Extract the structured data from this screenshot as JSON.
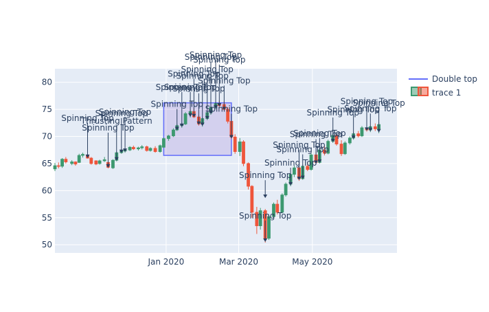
{
  "chart_data": {
    "type": "candlestick",
    "title": "",
    "xlabel": "",
    "ylabel": "",
    "x_range": [
      "2019-10-01",
      "2020-07-10"
    ],
    "ylim": [
      48.5,
      82.5
    ],
    "x_ticks": [
      {
        "date": "2020-01-01",
        "label": "Jan 2020"
      },
      {
        "date": "2020-03-01",
        "label": "Mar 2020"
      },
      {
        "date": "2020-05-01",
        "label": "May 2020"
      }
    ],
    "y_ticks": [
      50,
      55,
      60,
      65,
      70,
      75,
      80
    ],
    "colors": {
      "increasing": "#3d9970",
      "decreasing": "#ef553b",
      "grid": "#ffffff",
      "plot_bg": "#e5ecf6",
      "pattern_line": "#636efa",
      "pattern_fill": "rgba(150,110,210,0.22)",
      "annotation": "#2a3f5f"
    },
    "legend": {
      "position": "top-right",
      "entries": [
        {
          "name": "Double top",
          "symbol": "line"
        },
        {
          "name": "trace 1",
          "symbol": "candle"
        }
      ]
    },
    "patterns": [
      {
        "name": "Double top",
        "start": "2019-12-30",
        "end": "2020-02-24",
        "low": 66.5,
        "high": 76.2
      }
    ],
    "candles": [
      [
        "2019-10-01",
        64.0,
        65.1,
        63.6,
        64.6
      ],
      [
        "2019-10-04",
        64.6,
        65.2,
        64.1,
        64.5
      ],
      [
        "2019-10-07",
        64.5,
        66.0,
        64.2,
        65.8
      ],
      [
        "2019-10-10",
        65.8,
        66.2,
        65.0,
        65.3
      ],
      [
        "2019-10-15",
        65.0,
        65.6,
        64.7,
        65.3
      ],
      [
        "2019-10-18",
        65.3,
        65.4,
        64.6,
        64.9
      ],
      [
        "2019-10-21",
        65.2,
        66.8,
        65.1,
        66.5
      ],
      [
        "2019-10-24",
        66.5,
        67.0,
        66.1,
        66.7
      ],
      [
        "2019-10-28",
        66.5,
        66.9,
        65.9,
        66.0
      ],
      [
        "2019-10-31",
        66.0,
        66.2,
        64.8,
        65.0
      ],
      [
        "2019-11-04",
        65.5,
        65.6,
        64.7,
        64.9
      ],
      [
        "2019-11-07",
        65.0,
        65.7,
        64.8,
        65.5
      ],
      [
        "2019-11-11",
        65.5,
        66.2,
        65.3,
        65.7
      ],
      [
        "2019-11-14",
        65.2,
        65.5,
        64.1,
        64.3
      ],
      [
        "2019-11-18",
        64.2,
        65.8,
        64.0,
        65.6
      ],
      [
        "2019-11-21",
        65.6,
        67.2,
        65.4,
        67.0
      ],
      [
        "2019-11-25",
        67.0,
        67.6,
        66.8,
        67.3
      ],
      [
        "2019-11-28",
        67.3,
        67.8,
        67.0,
        67.5
      ],
      [
        "2019-12-02",
        67.5,
        68.2,
        67.3,
        68.0
      ],
      [
        "2019-12-05",
        68.0,
        68.3,
        67.5,
        67.7
      ],
      [
        "2019-12-09",
        67.7,
        68.1,
        67.4,
        67.9
      ],
      [
        "2019-12-12",
        67.9,
        68.4,
        67.6,
        68.1
      ],
      [
        "2019-12-16",
        68.1,
        68.3,
        67.2,
        67.4
      ],
      [
        "2019-12-19",
        67.4,
        68.0,
        67.2,
        67.8
      ],
      [
        "2019-12-23",
        67.8,
        68.2,
        67.0,
        67.2
      ],
      [
        "2019-12-27",
        67.2,
        68.5,
        67.0,
        68.3
      ],
      [
        "2019-12-30",
        68.0,
        69.8,
        67.9,
        69.6
      ],
      [
        "2020-01-03",
        69.6,
        70.3,
        69.2,
        70.1
      ],
      [
        "2020-01-07",
        70.1,
        71.5,
        69.9,
        71.2
      ],
      [
        "2020-01-10",
        71.2,
        72.3,
        71.0,
        72.0
      ],
      [
        "2020-01-14",
        72.0,
        72.6,
        71.6,
        72.3
      ],
      [
        "2020-01-17",
        72.3,
        74.5,
        72.1,
        74.2
      ],
      [
        "2020-01-21",
        74.2,
        75.0,
        73.5,
        74.6
      ],
      [
        "2020-01-24",
        74.6,
        75.2,
        73.4,
        73.6
      ],
      [
        "2020-01-28",
        73.6,
        74.0,
        72.0,
        72.3
      ],
      [
        "2020-01-31",
        72.3,
        73.5,
        71.8,
        73.3
      ],
      [
        "2020-02-04",
        73.3,
        74.6,
        73.0,
        74.4
      ],
      [
        "2020-02-07",
        74.4,
        75.7,
        74.0,
        75.4
      ],
      [
        "2020-02-11",
        75.4,
        76.4,
        75.0,
        76.1
      ],
      [
        "2020-02-14",
        76.1,
        76.6,
        75.4,
        75.7
      ],
      [
        "2020-02-18",
        75.9,
        76.5,
        74.7,
        75.0
      ],
      [
        "2020-02-21",
        75.0,
        75.4,
        72.4,
        72.8
      ],
      [
        "2020-02-24",
        72.8,
        73.0,
        69.5,
        69.9
      ],
      [
        "2020-02-27",
        69.9,
        70.4,
        66.8,
        67.2
      ],
      [
        "2020-03-02",
        67.2,
        69.7,
        66.4,
        69.0
      ],
      [
        "2020-03-05",
        69.0,
        69.3,
        64.5,
        65.0
      ],
      [
        "2020-03-09",
        65.0,
        65.2,
        60.2,
        60.8
      ],
      [
        "2020-03-12",
        60.8,
        61.0,
        55.0,
        56.0
      ],
      [
        "2020-03-16",
        56.0,
        57.0,
        52.0,
        53.5
      ],
      [
        "2020-03-19",
        53.5,
        56.8,
        52.8,
        56.3
      ],
      [
        "2020-03-23",
        56.3,
        56.6,
        50.4,
        51.2
      ],
      [
        "2020-03-26",
        51.2,
        55.6,
        50.9,
        55.2
      ],
      [
        "2020-03-30",
        55.2,
        57.8,
        54.8,
        57.5
      ],
      [
        "2020-04-02",
        57.5,
        58.3,
        55.6,
        56.0
      ],
      [
        "2020-04-06",
        56.0,
        59.5,
        55.8,
        59.2
      ],
      [
        "2020-04-09",
        59.2,
        61.5,
        58.9,
        61.2
      ],
      [
        "2020-04-13",
        61.2,
        63.2,
        60.8,
        63.0
      ],
      [
        "2020-04-16",
        63.0,
        64.6,
        62.5,
        64.2
      ],
      [
        "2020-04-20",
        64.2,
        64.6,
        61.8,
        62.2
      ],
      [
        "2020-04-23",
        62.2,
        64.8,
        62.0,
        64.5
      ],
      [
        "2020-04-27",
        64.5,
        65.3,
        63.6,
        63.9
      ],
      [
        "2020-04-30",
        63.9,
        66.9,
        63.7,
        66.6
      ],
      [
        "2020-05-04",
        66.6,
        67.2,
        64.8,
        65.2
      ],
      [
        "2020-05-07",
        65.2,
        67.8,
        65.0,
        67.5
      ],
      [
        "2020-05-11",
        67.5,
        68.2,
        66.5,
        66.9
      ],
      [
        "2020-05-14",
        66.9,
        69.4,
        66.7,
        69.1
      ],
      [
        "2020-05-18",
        69.1,
        70.6,
        68.8,
        70.2
      ],
      [
        "2020-05-21",
        70.2,
        70.6,
        68.3,
        68.6
      ],
      [
        "2020-05-25",
        68.6,
        69.3,
        66.4,
        66.8
      ],
      [
        "2020-05-28",
        66.8,
        69.1,
        66.6,
        68.8
      ],
      [
        "2020-06-01",
        68.8,
        70.0,
        68.5,
        69.7
      ],
      [
        "2020-06-04",
        69.7,
        70.8,
        69.4,
        70.5
      ],
      [
        "2020-06-08",
        70.5,
        71.0,
        69.8,
        70.1
      ],
      [
        "2020-06-11",
        70.1,
        71.9,
        69.9,
        71.6
      ],
      [
        "2020-06-15",
        71.6,
        72.3,
        70.9,
        71.2
      ],
      [
        "2020-06-18",
        71.2,
        72.0,
        70.8,
        71.8
      ],
      [
        "2020-06-22",
        71.8,
        72.4,
        71.0,
        71.4
      ],
      [
        "2020-06-25",
        71.4,
        72.6,
        70.6,
        72.2
      ]
    ],
    "annotations": [
      {
        "text": "Spinning Top",
        "date": "2019-10-28",
        "y": 65.9,
        "ay": -55
      },
      {
        "text": "Spinning Top",
        "date": "2019-11-14",
        "y": 64.1,
        "ay": -55
      },
      {
        "text": "Thrusting Pattern",
        "date": "2019-11-21",
        "y": 65.4,
        "ay": -55
      },
      {
        "text": "Spinning Top",
        "date": "2019-11-25",
        "y": 66.8,
        "ay": -55
      },
      {
        "text": "Spinning Top",
        "date": "2019-11-28",
        "y": 67.0,
        "ay": -55
      },
      {
        "text": "Spinning Top",
        "date": "2020-01-10",
        "y": 71.0,
        "ay": -35
      },
      {
        "text": "Spinning Top",
        "date": "2020-01-14",
        "y": 71.6,
        "ay": -55
      },
      {
        "text": "Spinning Top",
        "date": "2020-01-21",
        "y": 73.5,
        "ay": -40
      },
      {
        "text": "Spinning Top",
        "date": "2020-01-24",
        "y": 73.4,
        "ay": -60
      },
      {
        "text": "Spinning Top",
        "date": "2020-01-28",
        "y": 72.0,
        "ay": -50
      },
      {
        "text": "Spinning Top",
        "date": "2020-01-31",
        "y": 71.8,
        "ay": -70
      },
      {
        "text": "Spinning Top",
        "date": "2020-02-04",
        "y": 73.0,
        "ay": -70
      },
      {
        "text": "Spinning Top",
        "date": "2020-02-07",
        "y": 74.0,
        "ay": -80
      },
      {
        "text": "Spinning Top",
        "date": "2020-02-11",
        "y": 75.0,
        "ay": -75
      },
      {
        "text": "Spinning Top",
        "date": "2020-02-14",
        "y": 75.4,
        "ay": -65
      },
      {
        "text": "Spinning Top",
        "date": "2020-02-18",
        "y": 74.7,
        "ay": -40
      },
      {
        "text": "Spinning Top",
        "date": "2020-02-24",
        "y": 69.5,
        "ay": -40
      },
      {
        "text": "Spinning Top",
        "date": "2020-03-23",
        "y": 50.4,
        "ay": -35
      },
      {
        "text": "Spinning Top",
        "date": "2020-03-23",
        "y": 58.5,
        "ay": -30
      },
      {
        "text": "Spinning Top",
        "date": "2020-04-13",
        "y": 60.8,
        "ay": -30
      },
      {
        "text": "Spinning Top",
        "date": "2020-04-20",
        "y": 61.8,
        "ay": -48
      },
      {
        "text": "Spinning Top",
        "date": "2020-04-23",
        "y": 62.0,
        "ay": -40
      },
      {
        "text": "Spinning Top",
        "date": "2020-05-04",
        "y": 64.8,
        "ay": -40
      },
      {
        "text": "Spinning Top",
        "date": "2020-05-07",
        "y": 65.0,
        "ay": -40
      },
      {
        "text": "Spinning Top",
        "date": "2020-05-18",
        "y": 68.8,
        "ay": -40
      },
      {
        "text": "Spinning Top",
        "date": "2020-06-04",
        "y": 69.4,
        "ay": -40
      },
      {
        "text": "Spinning Top",
        "date": "2020-06-15",
        "y": 70.9,
        "ay": -40
      },
      {
        "text": "Spinning Top",
        "date": "2020-06-18",
        "y": 70.8,
        "ay": -30
      },
      {
        "text": "Spinning Top",
        "date": "2020-06-25",
        "y": 70.6,
        "ay": -40
      }
    ]
  }
}
